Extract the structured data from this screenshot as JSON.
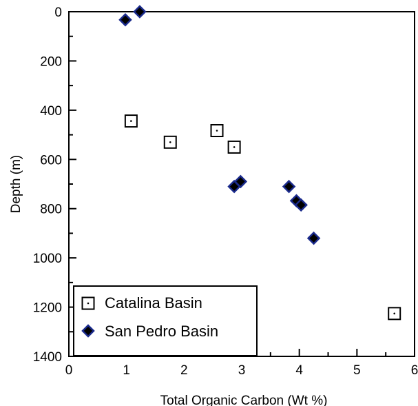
{
  "chart_data": {
    "type": "scatter",
    "xlabel": "Total Organic Carbon (Wt %)",
    "ylabel": "Depth (m)",
    "xlim": [
      0,
      6
    ],
    "ylim": [
      1400,
      0
    ],
    "y_inverted": true,
    "x_ticks": [
      "0",
      "1",
      "2",
      "3",
      "4",
      "5",
      "6"
    ],
    "y_ticks": [
      "0",
      "200",
      "400",
      "600",
      "800",
      "1000",
      "1200",
      "1400"
    ],
    "grid": false,
    "legend_position": "bottom-left",
    "series": [
      {
        "name": "Catalina Basin",
        "marker": "open-square-with-dot",
        "color": "#000000",
        "points": [
          {
            "x": 1.08,
            "y": 444
          },
          {
            "x": 1.76,
            "y": 530
          },
          {
            "x": 2.57,
            "y": 483
          },
          {
            "x": 2.87,
            "y": 550
          },
          {
            "x": 5.65,
            "y": 1226
          }
        ]
      },
      {
        "name": "San Pedro Basin",
        "marker": "filled-diamond",
        "color": "#1a2a8c",
        "fill": "#000000",
        "points": [
          {
            "x": 0.98,
            "y": 33
          },
          {
            "x": 1.23,
            "y": 0
          },
          {
            "x": 2.87,
            "y": 710
          },
          {
            "x": 2.98,
            "y": 690
          },
          {
            "x": 3.82,
            "y": 710
          },
          {
            "x": 3.95,
            "y": 768
          },
          {
            "x": 4.03,
            "y": 785
          },
          {
            "x": 4.25,
            "y": 920
          }
        ]
      }
    ]
  }
}
